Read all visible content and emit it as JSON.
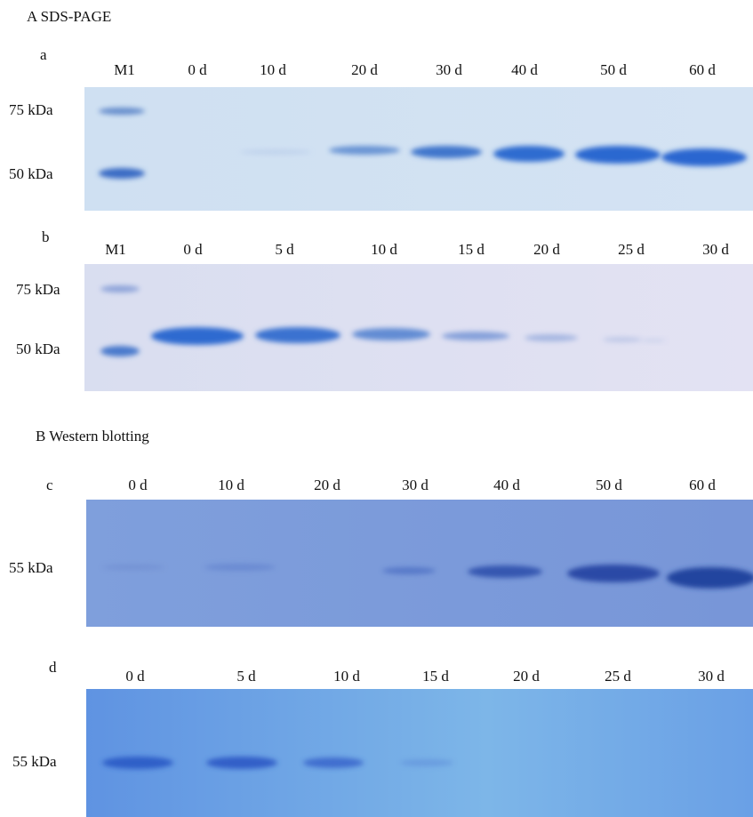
{
  "section_a": {
    "title": "A  SDS-PAGE",
    "panels": [
      {
        "label": "a",
        "lanes": [
          "M1",
          "0 d",
          "10 d",
          "20 d",
          "30 d",
          "40 d",
          "50 d",
          "60 d"
        ],
        "markers": [
          "75 kDa",
          "50  kDa"
        ]
      },
      {
        "label": "b",
        "lanes": [
          "M1",
          "0 d",
          "5  d",
          "10 d",
          "15 d",
          "20 d",
          "25 d",
          "30 d"
        ],
        "markers": [
          "75 kDa",
          "50 kDa"
        ]
      }
    ]
  },
  "section_b": {
    "title": "B  Western blotting",
    "panels": [
      {
        "label": "c",
        "lanes": [
          "0 d",
          "10 d",
          "20 d",
          "30 d",
          "40 d",
          "50 d",
          "60 d"
        ],
        "markers": [
          "55  kDa"
        ]
      },
      {
        "label": "d",
        "lanes": [
          "0 d",
          "5  d",
          "10 d",
          "15 d",
          "20 d",
          "25 d",
          "30 d"
        ],
        "markers": [
          "55  kDa"
        ]
      }
    ]
  }
}
